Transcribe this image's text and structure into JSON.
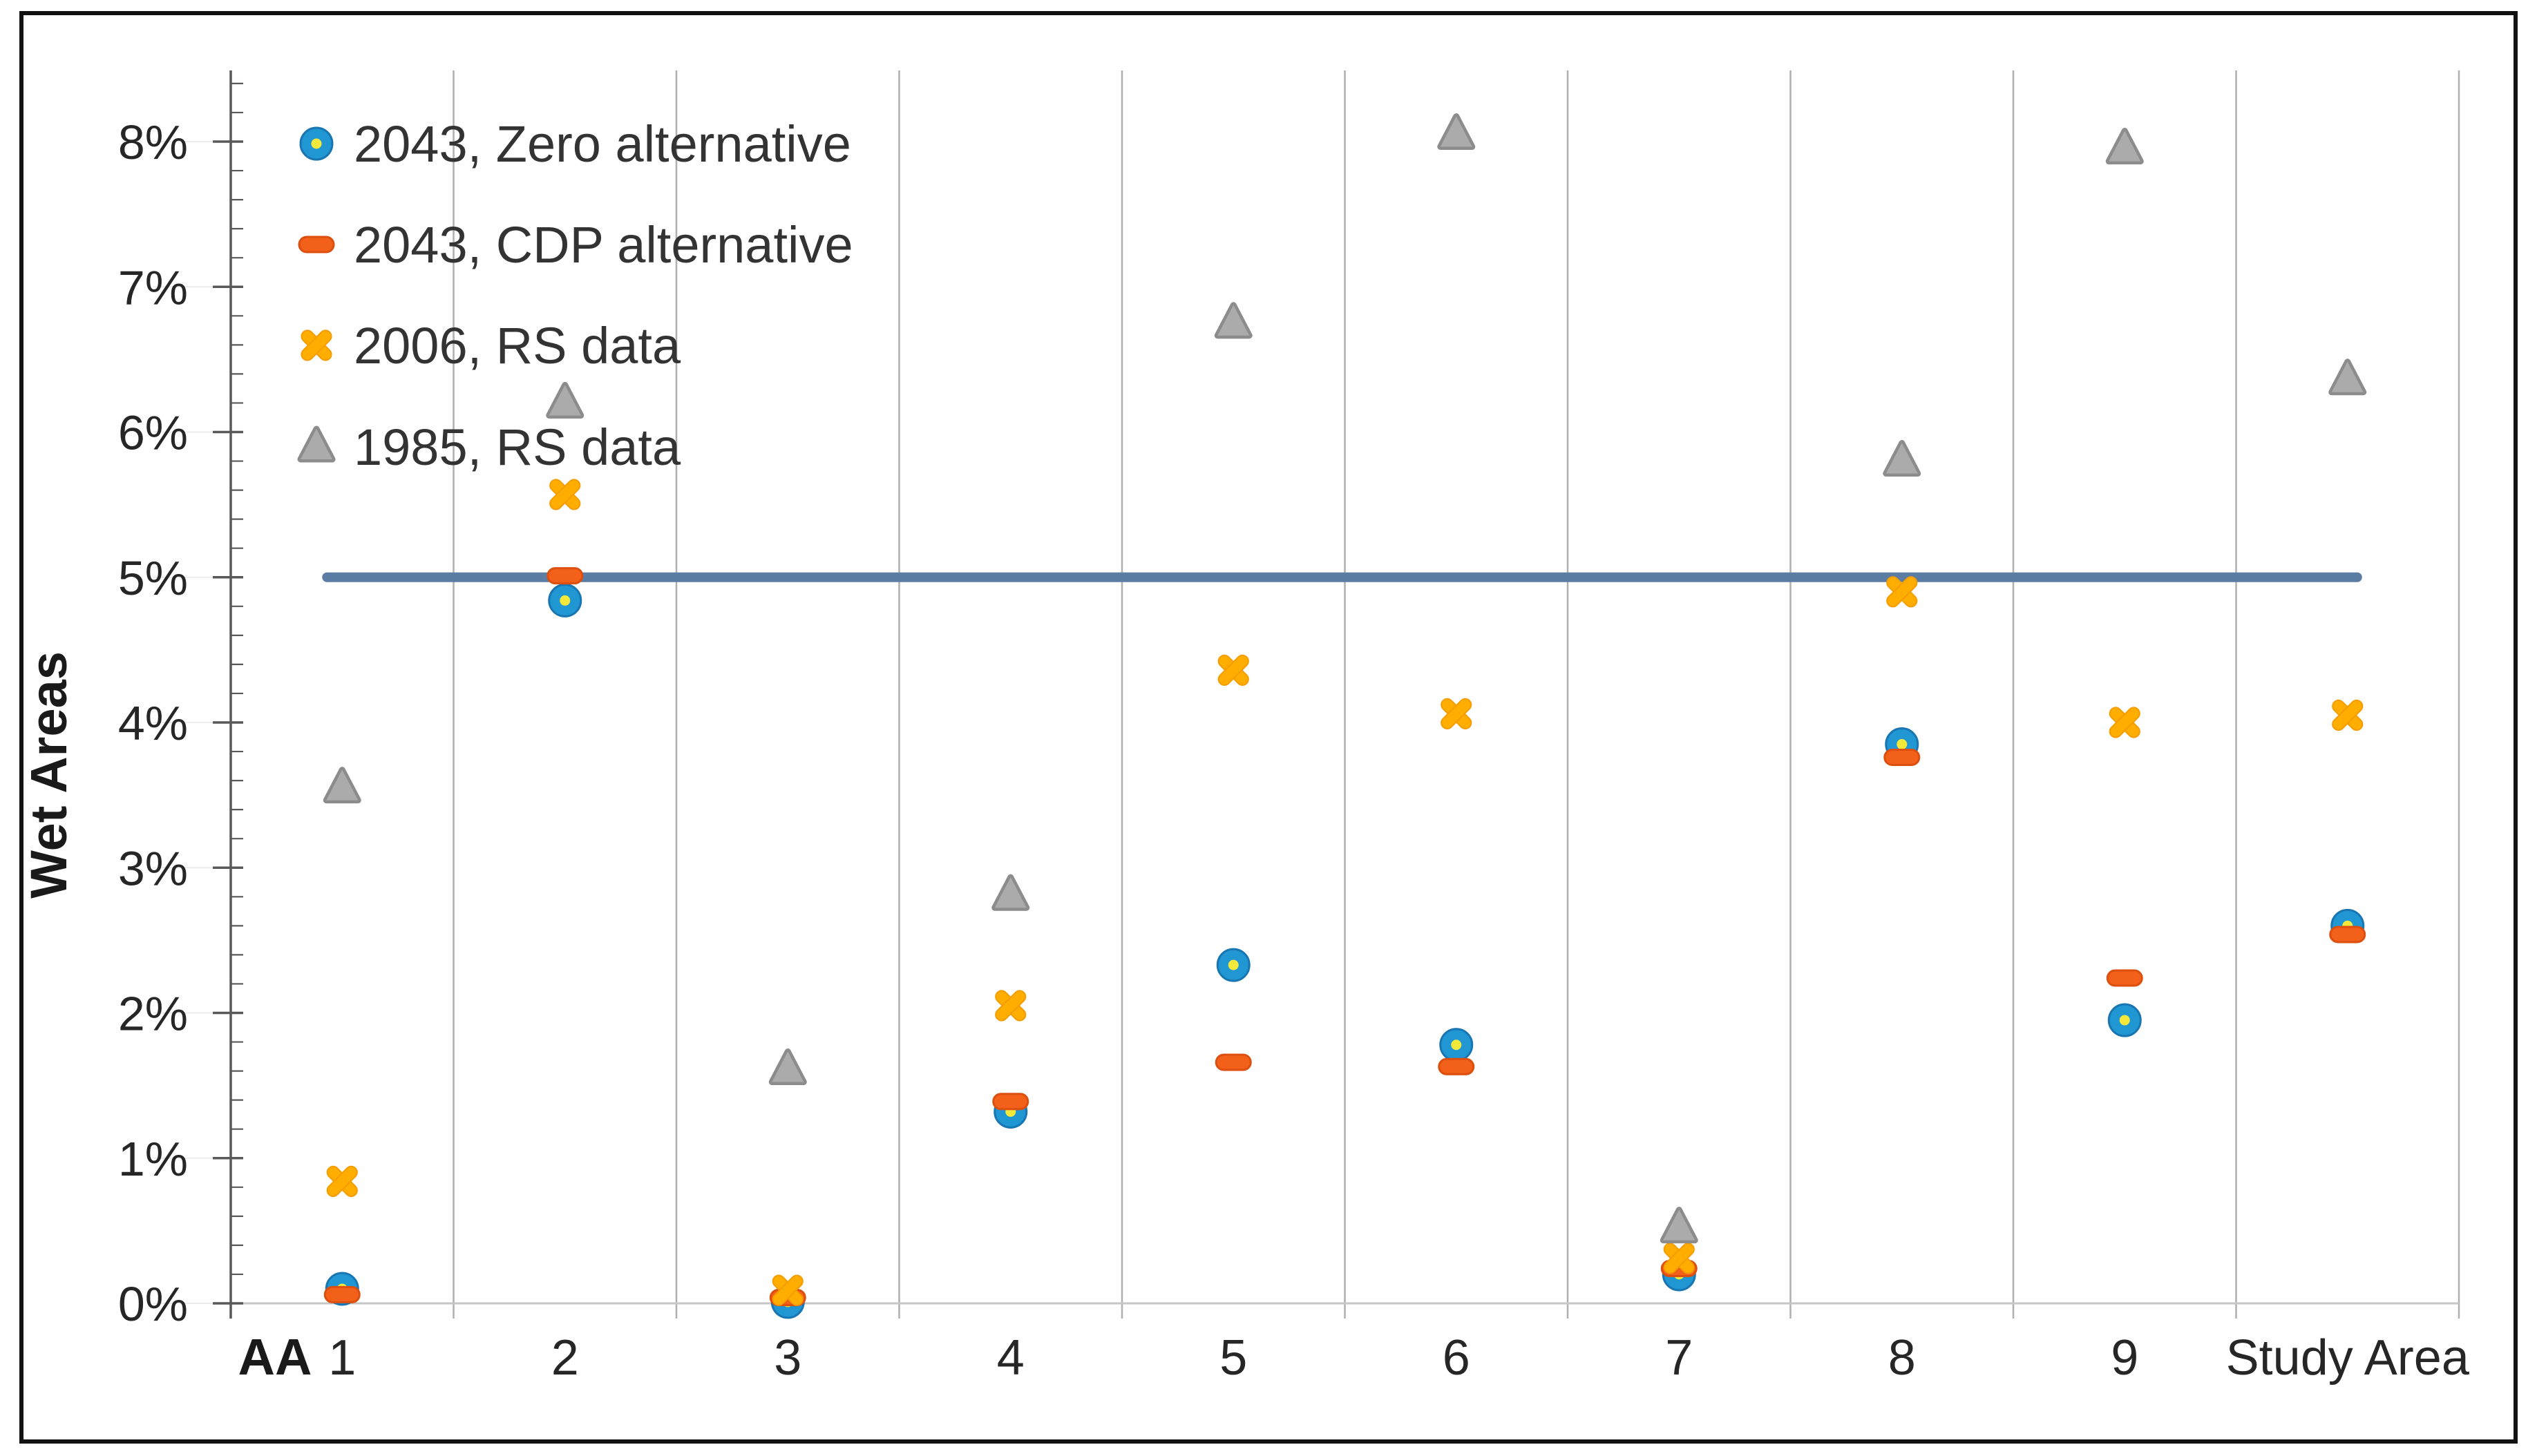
{
  "figure": {
    "background": "#ffffff",
    "border_color": "#111111"
  },
  "chart_data": {
    "type": "scatter",
    "title": "",
    "ylabel": "Wet Areas",
    "xlabel": "AA",
    "categories": [
      "1",
      "2",
      "3",
      "4",
      "5",
      "6",
      "7",
      "8",
      "9",
      "Study Area"
    ],
    "y_ticks": [
      "0%",
      "1%",
      "2%",
      "3%",
      "4%",
      "5%",
      "6%",
      "7%",
      "8%"
    ],
    "ylim": [
      0,
      8.5
    ],
    "y_major_step": 1,
    "y_minor_step": 0.2,
    "grid": "vertical-only",
    "legend_position": "top-left-inside",
    "reference_line": {
      "value": 5.0,
      "color": "#5B7CA3",
      "label": ""
    },
    "series": [
      {
        "name": "2043, Zero alternative",
        "marker": "circle",
        "color": "#2097D3",
        "edge_color": "#1876B3",
        "dot_color": "#F2E93B",
        "values": [
          0.1,
          4.84,
          0.01,
          1.32,
          2.33,
          1.78,
          0.2,
          3.85,
          1.95,
          2.6
        ]
      },
      {
        "name": "2043, CDP alternative",
        "marker": "dash",
        "color": "#F2601A",
        "edge_color": "#DD4F0E",
        "values": [
          0.06,
          5.01,
          0.04,
          1.39,
          1.66,
          1.63,
          0.24,
          3.76,
          2.24,
          2.54
        ]
      },
      {
        "name": "2006, RS data",
        "marker": "x-cross",
        "color": "#FFAE00",
        "edge_color": "#F49C02",
        "values": [
          0.84,
          5.57,
          0.09,
          2.05,
          4.36,
          4.06,
          0.31,
          4.9,
          4.0,
          4.05
        ]
      },
      {
        "name": "1985, RS data",
        "marker": "triangle",
        "color": "#ABABAB",
        "edge_color": "#8C8C8C",
        "values": [
          3.55,
          6.2,
          1.61,
          2.81,
          6.75,
          8.05,
          0.52,
          5.8,
          7.95,
          6.36
        ]
      }
    ],
    "axis_colors": {
      "axis_line": "#595959",
      "gridline": "#AFAFAF",
      "zero_line": "#C6C6C6",
      "tick_stub": "#ECECEC",
      "text": "#262626"
    }
  }
}
